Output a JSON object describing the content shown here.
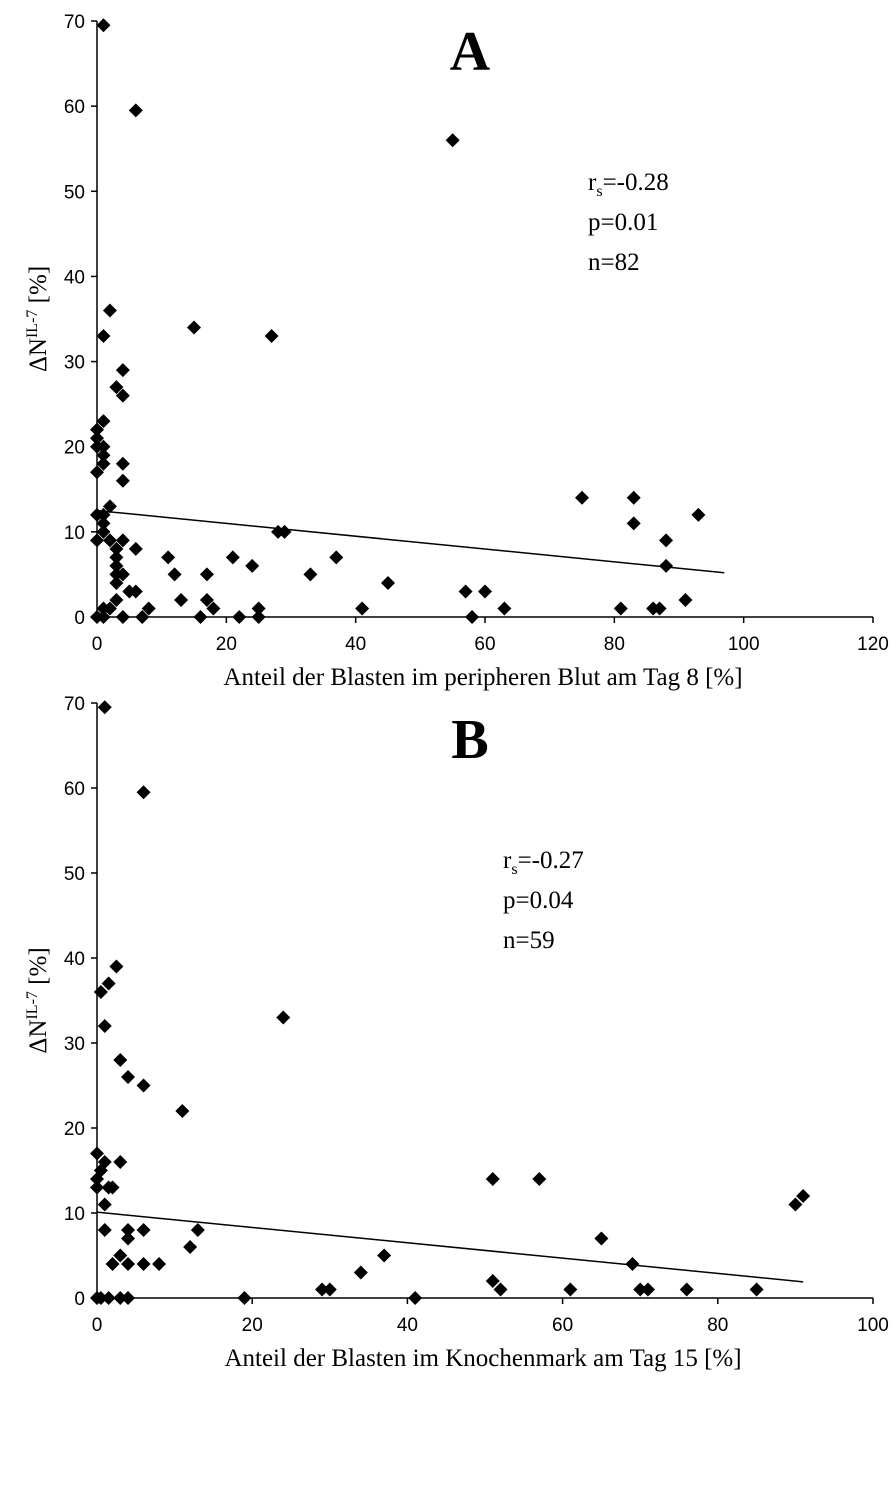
{
  "chart_data": [
    {
      "type": "scatter",
      "title": "A",
      "xlabel": "Anteil der Blasten im peripheren Blut am Tag 8 [%]",
      "ylabel": {
        "main": "ΔN",
        "sup": "IL-7",
        "rest": " [%]"
      },
      "annotations": [
        {
          "text": "r",
          "sub": "s",
          "rest": "=-0.28"
        },
        {
          "text": "p=0.01"
        },
        {
          "text": "n=82"
        }
      ],
      "color": "#000000",
      "x": [
        1,
        6,
        55,
        2,
        1,
        15,
        27,
        4,
        3,
        4,
        0,
        1,
        0,
        0,
        1,
        1,
        1,
        0,
        4,
        4,
        2,
        0,
        1,
        1,
        1,
        0,
        2,
        4,
        3,
        6,
        3,
        3,
        4,
        3,
        3,
        5,
        6,
        3,
        2,
        1,
        0,
        1,
        4,
        8,
        7,
        11,
        12,
        13,
        16,
        17,
        17,
        18,
        21,
        22,
        24,
        25,
        25,
        28,
        29,
        33,
        37,
        41,
        45,
        57,
        58,
        60,
        63,
        75,
        81,
        83,
        83,
        86,
        87,
        88,
        88,
        91,
        93
      ],
      "values": [
        69.5,
        59.5,
        56,
        36,
        33,
        34,
        33,
        29,
        27,
        26,
        22,
        23,
        21,
        20,
        20,
        19,
        18,
        17,
        18,
        16,
        13,
        12,
        12,
        11,
        10,
        9,
        9,
        9,
        8,
        8,
        7,
        6,
        5,
        5,
        4,
        3,
        3,
        2,
        1,
        1,
        0,
        0,
        0,
        1,
        0,
        7,
        5,
        2,
        0,
        5,
        2,
        1,
        7,
        0,
        6,
        1,
        0,
        10,
        10,
        5,
        7,
        1,
        4,
        3,
        0,
        3,
        1,
        14,
        1,
        14,
        11,
        1,
        1,
        9,
        6,
        2,
        12
      ],
      "trendline": {
        "x": [
          0,
          97
        ],
        "y": [
          12.5,
          5.2
        ]
      },
      "xlim": [
        0,
        120
      ],
      "xticks": [
        0,
        20,
        40,
        60,
        80,
        100,
        120
      ],
      "ylim": [
        0,
        70
      ],
      "yticks": [
        0,
        10,
        20,
        30,
        40,
        50,
        60,
        70
      ]
    },
    {
      "type": "scatter",
      "title": "B",
      "xlabel": "Anteil der Blasten im Knochenmark am Tag 15 [%]",
      "ylabel": {
        "main": "ΔN",
        "sup": "IL-7",
        "rest": " [%]"
      },
      "annotations": [
        {
          "text": "r",
          "sub": "s",
          "rest": "=-0.27"
        },
        {
          "text": "p=0.04"
        },
        {
          "text": "n=59"
        }
      ],
      "color": "#000000",
      "x": [
        1,
        6,
        0.5,
        1.5,
        2.5,
        1,
        24,
        3,
        4,
        6,
        11,
        0,
        3,
        1,
        0.5,
        0,
        0,
        1.5,
        2,
        1,
        1,
        4,
        4,
        6,
        3,
        2,
        4,
        6,
        8,
        0,
        0.5,
        1.5,
        3,
        4,
        12,
        13,
        19,
        29,
        30,
        34,
        37,
        41,
        51,
        51,
        52,
        57,
        61,
        65,
        69,
        70,
        71,
        76,
        85,
        90,
        91
      ],
      "values": [
        69.5,
        59.5,
        36,
        37,
        39,
        32,
        33,
        28,
        26,
        25,
        22,
        17,
        16,
        16,
        15,
        14,
        13,
        13,
        13,
        11,
        8,
        8,
        7,
        8,
        5,
        4,
        4,
        4,
        4,
        0,
        0,
        0,
        0,
        0,
        6,
        8,
        0,
        1,
        1,
        3,
        5,
        0,
        14,
        2,
        1,
        14,
        1,
        7,
        4,
        1,
        1,
        1,
        1,
        11,
        12
      ],
      "trendline": {
        "x": [
          0,
          91
        ],
        "y": [
          10.1,
          1.9
        ]
      },
      "xlim": [
        0,
        100
      ],
      "xticks": [
        0,
        20,
        40,
        60,
        80,
        100
      ],
      "ylim": [
        0,
        70
      ],
      "yticks": [
        0,
        10,
        20,
        30,
        40,
        50,
        60,
        70
      ]
    }
  ]
}
